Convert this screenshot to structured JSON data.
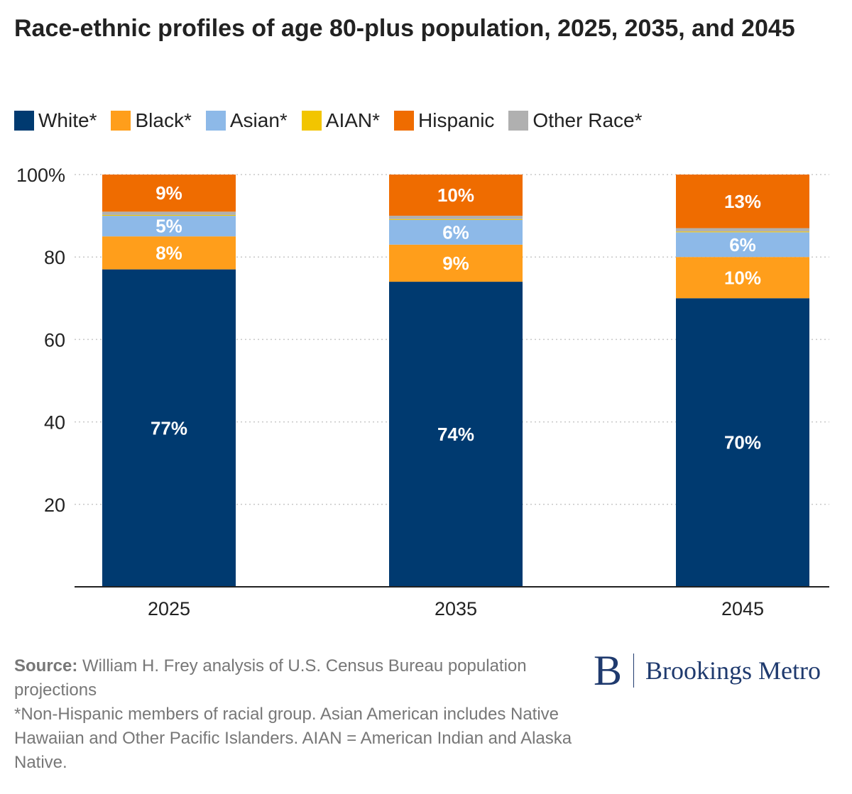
{
  "title": "Race-ethnic profiles of age 80-plus population, 2025, 2035, and 2045",
  "legend": [
    {
      "label": "White*",
      "color": "#003a70"
    },
    {
      "label": "Black*",
      "color": "#ff9e1b"
    },
    {
      "label": "Asian*",
      "color": "#8db9e8"
    },
    {
      "label": "AIAN*",
      "color": "#f2c500"
    },
    {
      "label": "Hispanic",
      "color": "#ef6c00"
    },
    {
      "label": "Other Race*",
      "color": "#b0b0b0"
    }
  ],
  "chart_data": {
    "type": "bar",
    "stacked": true,
    "categories": [
      "2025",
      "2035",
      "2045"
    ],
    "series": [
      {
        "name": "White*",
        "color": "#003a70",
        "values": [
          77,
          74,
          70
        ],
        "labels": [
          "77%",
          "74%",
          "70%"
        ]
      },
      {
        "name": "Black*",
        "color": "#ff9e1b",
        "values": [
          8,
          9,
          10
        ],
        "labels": [
          "8%",
          "9%",
          "10%"
        ]
      },
      {
        "name": "Asian*",
        "color": "#8db9e8",
        "values": [
          5,
          6,
          6
        ],
        "labels": [
          "5%",
          "6%",
          "6%"
        ]
      },
      {
        "name": "AIAN*",
        "color": "#f2c500",
        "values": [
          0.2,
          0.2,
          0.2
        ],
        "labels": [
          "",
          "",
          ""
        ]
      },
      {
        "name": "Other Race*",
        "color": "#b0b0b0",
        "values": [
          0.8,
          0.8,
          0.8
        ],
        "labels": [
          "",
          "",
          ""
        ]
      },
      {
        "name": "Hispanic",
        "color": "#ef6c00",
        "values": [
          9,
          10,
          13
        ],
        "labels": [
          "9%",
          "10%",
          "13%"
        ]
      }
    ],
    "ylim": [
      0,
      100
    ],
    "yticks": [
      20,
      40,
      60,
      80,
      100
    ],
    "ytick_labels": [
      "20",
      "40",
      "60",
      "80",
      "100%"
    ],
    "grid": true,
    "legend_position": "top-left"
  },
  "footer": {
    "source_label": "Source:",
    "source_text": " William H. Frey analysis of U.S. Census Bureau population projections",
    "note": "*Non-Hispanic members of racial group. Asian American includes Native Hawaiian and Other Pacific Islanders. AIAN = American Indian and Alaska Native."
  },
  "logo": {
    "mark": "B",
    "name": "Brookings Metro",
    "color": "#1f3a6e"
  }
}
